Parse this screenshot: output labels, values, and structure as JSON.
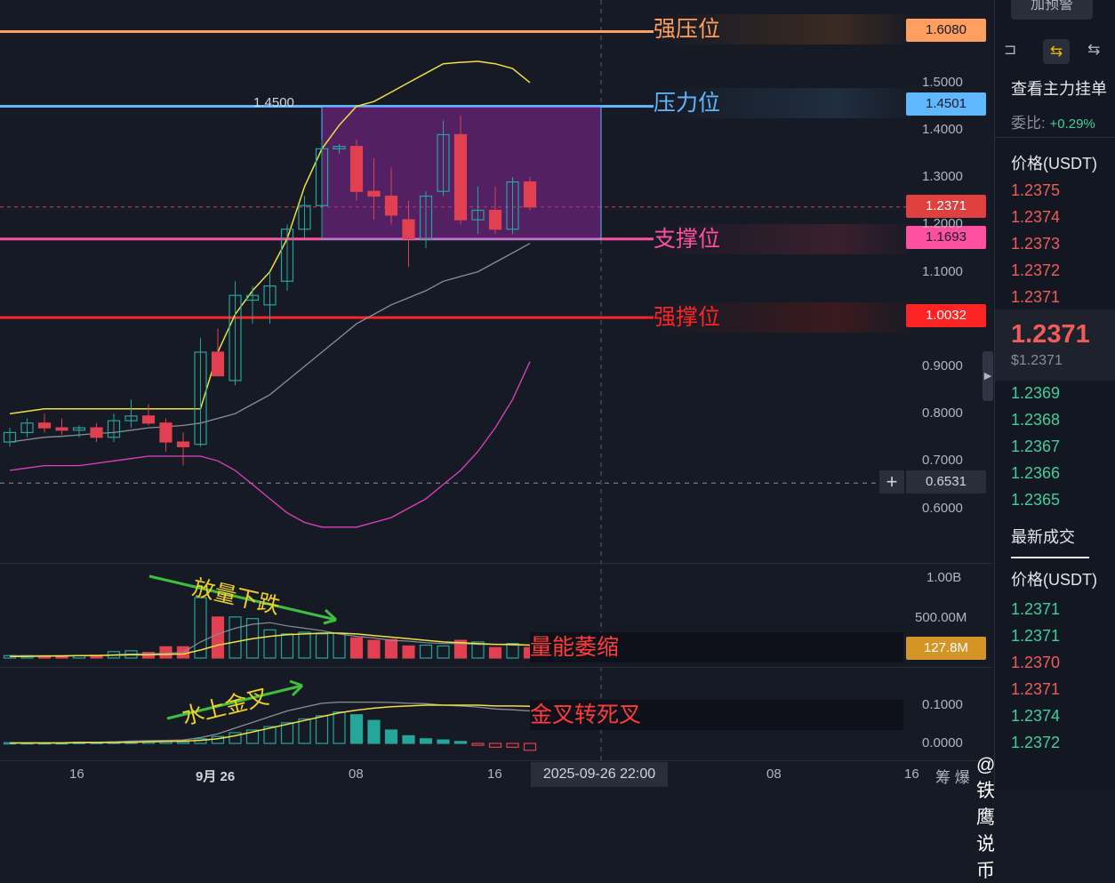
{
  "chart_data": {
    "type": "candlestick",
    "yrange": [
      0.52,
      1.72
    ],
    "price_ticks": [
      "1.5000",
      "1.4000",
      "1.3000",
      "1.2000",
      "1.1000",
      "0.9000",
      "0.8000",
      "0.7000",
      "0.6000"
    ],
    "price_tick_values": [
      1.5,
      1.4,
      1.3,
      1.2,
      1.1,
      0.9,
      0.8,
      0.7,
      0.6
    ],
    "x_labels": [
      "16",
      "9月 26",
      "08",
      "16",
      "08",
      "16"
    ],
    "x_label_bar_index": [
      4,
      12,
      20,
      28,
      43,
      51
    ],
    "crosshair_time": "2025-09-26 22:00",
    "crosshair_price": "0.6531",
    "current_price": "1.2371",
    "candles": [
      {
        "o": 0.74,
        "h": 0.77,
        "l": 0.73,
        "c": 0.76
      },
      {
        "o": 0.76,
        "h": 0.79,
        "l": 0.75,
        "c": 0.78
      },
      {
        "o": 0.78,
        "h": 0.8,
        "l": 0.76,
        "c": 0.77
      },
      {
        "o": 0.77,
        "h": 0.79,
        "l": 0.755,
        "c": 0.765
      },
      {
        "o": 0.765,
        "h": 0.775,
        "l": 0.75,
        "c": 0.77
      },
      {
        "o": 0.77,
        "h": 0.78,
        "l": 0.74,
        "c": 0.75
      },
      {
        "o": 0.75,
        "h": 0.8,
        "l": 0.74,
        "c": 0.785
      },
      {
        "o": 0.785,
        "h": 0.83,
        "l": 0.77,
        "c": 0.795
      },
      {
        "o": 0.795,
        "h": 0.82,
        "l": 0.775,
        "c": 0.78
      },
      {
        "o": 0.78,
        "h": 0.79,
        "l": 0.72,
        "c": 0.74
      },
      {
        "o": 0.74,
        "h": 0.76,
        "l": 0.69,
        "c": 0.73
      },
      {
        "o": 0.735,
        "h": 0.96,
        "l": 0.73,
        "c": 0.93
      },
      {
        "o": 0.93,
        "h": 0.98,
        "l": 0.88,
        "c": 0.88
      },
      {
        "o": 0.87,
        "h": 1.08,
        "l": 0.86,
        "c": 1.05
      },
      {
        "o": 1.04,
        "h": 1.07,
        "l": 0.99,
        "c": 1.05
      },
      {
        "o": 1.03,
        "h": 1.1,
        "l": 0.99,
        "c": 1.07
      },
      {
        "o": 1.08,
        "h": 1.2,
        "l": 1.06,
        "c": 1.19
      },
      {
        "o": 1.19,
        "h": 1.26,
        "l": 1.17,
        "c": 1.24
      },
      {
        "o": 1.24,
        "h": 1.38,
        "l": 1.17,
        "c": 1.36
      },
      {
        "o": 1.36,
        "h": 1.37,
        "l": 1.35,
        "c": 1.365
      },
      {
        "o": 1.365,
        "h": 1.38,
        "l": 1.25,
        "c": 1.27
      },
      {
        "o": 1.27,
        "h": 1.34,
        "l": 1.21,
        "c": 1.26
      },
      {
        "o": 1.26,
        "h": 1.32,
        "l": 1.2,
        "c": 1.22
      },
      {
        "o": 1.21,
        "h": 1.25,
        "l": 1.11,
        "c": 1.17
      },
      {
        "o": 1.17,
        "h": 1.27,
        "l": 1.15,
        "c": 1.26
      },
      {
        "o": 1.27,
        "h": 1.42,
        "l": 1.26,
        "c": 1.39
      },
      {
        "o": 1.39,
        "h": 1.43,
        "l": 1.2,
        "c": 1.21
      },
      {
        "o": 1.21,
        "h": 1.28,
        "l": 1.18,
        "c": 1.23
      },
      {
        "o": 1.23,
        "h": 1.28,
        "l": 1.18,
        "c": 1.19
      },
      {
        "o": 1.19,
        "h": 1.3,
        "l": 1.18,
        "c": 1.29
      },
      {
        "o": 1.29,
        "h": 1.3,
        "l": 1.23,
        "c": 1.237
      }
    ],
    "levels": [
      {
        "name": "强压位",
        "price": "1.6080",
        "value": 1.608,
        "color": "#ff9e5e",
        "tag_text": "#161a25"
      },
      {
        "name": "压力位",
        "price": "1.4501",
        "value": 1.4501,
        "color": "#5fb8ff",
        "tag_text": "#161a25"
      },
      {
        "name": "支撑位",
        "price": "1.1693",
        "value": 1.1693,
        "color": "#ff4fa0",
        "tag_text": "#161a25"
      },
      {
        "name": "强撑位",
        "price": "1.0032",
        "value": 1.0032,
        "color": "#ff2424",
        "tag_text": "#ffffff"
      }
    ],
    "box_label": "1.4500",
    "volume": {
      "ticks": [
        "1.00B",
        "500.00M"
      ],
      "tick_values": [
        1.0,
        0.5
      ],
      "max": 1.05,
      "current_label": "127.8M",
      "values": [
        0.03,
        0.03,
        0.025,
        0.03,
        0.03,
        0.035,
        0.08,
        0.09,
        0.07,
        0.14,
        0.14,
        0.75,
        0.51,
        0.51,
        0.49,
        0.35,
        0.3,
        0.32,
        0.3,
        0.31,
        0.25,
        0.22,
        0.23,
        0.15,
        0.16,
        0.15,
        0.22,
        0.2,
        0.13,
        0.18,
        0.13
      ]
    },
    "macd": {
      "ticks": [
        "0.1000",
        "0.0000"
      ],
      "tick_values": [
        0.1,
        0.0
      ],
      "min": -0.02,
      "max": 0.14,
      "values": [
        0.002,
        0.002,
        0.002,
        0.002,
        0.003,
        0.003,
        0.004,
        0.005,
        0.005,
        0.005,
        0.004,
        0.012,
        0.018,
        0.028,
        0.035,
        0.044,
        0.054,
        0.064,
        0.072,
        0.082,
        0.075,
        0.06,
        0.035,
        0.02,
        0.012,
        0.009,
        0.005,
        -0.005,
        -0.01,
        -0.01,
        -0.018
      ]
    }
  },
  "annotations": {
    "volume_drop": "放量下跌",
    "volume_shrink": "量能萎缩",
    "macd_cross": "水上金叉",
    "macd_turn": "金叉转死叉"
  },
  "panel": {
    "alert_button": "加预警",
    "title": "查看主力挂单",
    "ratio_label": "委比:",
    "ratio_value": "+0.29%",
    "price_header": "价格(USDT)",
    "asks": [
      "1.2375",
      "1.2374",
      "1.2373",
      "1.2372",
      "1.2371"
    ],
    "last_price": "1.2371",
    "last_usd": "$1.2371",
    "bids": [
      "1.2369",
      "1.2368",
      "1.2367",
      "1.2366",
      "1.2365"
    ],
    "trades_title": "最新成交",
    "trades_header": "价格(USDT)",
    "trades": [
      {
        "price": "1.2371",
        "side": "buy"
      },
      {
        "price": "1.2371",
        "side": "buy"
      },
      {
        "price": "1.2370",
        "side": "sell"
      },
      {
        "price": "1.2371",
        "side": "sell"
      },
      {
        "price": "1.2374",
        "side": "buy"
      },
      {
        "price": "1.2372",
        "side": "buy"
      }
    ]
  },
  "watermark": "@铁鹰说币",
  "chip_label": "筹 爆"
}
